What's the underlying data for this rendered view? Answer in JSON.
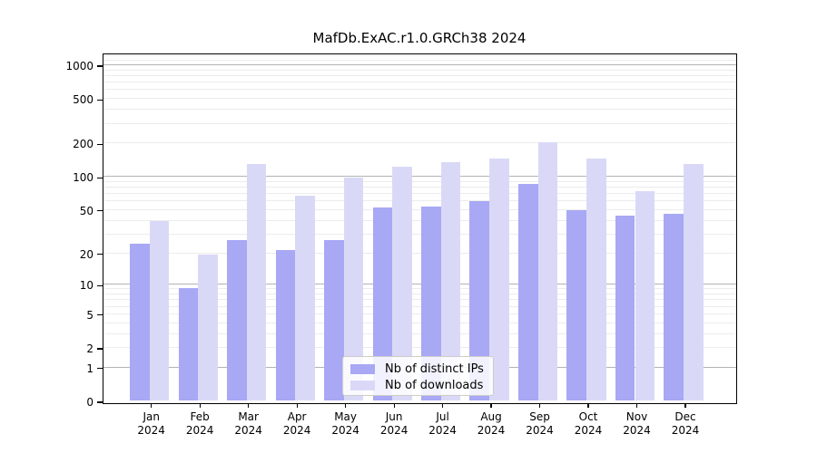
{
  "chart_data": {
    "type": "bar",
    "title": "MafDb.ExAC.r1.0.GRCh38 2024",
    "yscale": "log1p",
    "categories": [
      "Jan",
      "Feb",
      "Mar",
      "Apr",
      "May",
      "Jun",
      "Jul",
      "Aug",
      "Sep",
      "Oct",
      "Nov",
      "Dec"
    ],
    "x_year_label": "2024",
    "series": [
      {
        "name": "Nb of distinct IPs",
        "color": "#a8a8f5",
        "values": [
          24,
          9,
          26,
          21,
          26,
          52,
          53,
          59,
          85,
          49,
          44,
          45
        ]
      },
      {
        "name": "Nb of downloads",
        "color": "#d9d9f7",
        "values": [
          39,
          19,
          128,
          66,
          96,
          120,
          133,
          144,
          200,
          143,
          73,
          128
        ]
      }
    ],
    "yticks": [
      0,
      1,
      2,
      5,
      10,
      20,
      50,
      100,
      200,
      500,
      1000
    ],
    "ylim": [
      0,
      1275
    ],
    "xlabel": "",
    "ylabel": "",
    "grid": true,
    "legend_position": "lower center"
  },
  "colors": {
    "background": "#ffffff",
    "axis": "#000000",
    "major_grid": "#b3b3b3",
    "minor_grid": "#ececec",
    "legend_border": "#cccccc"
  }
}
